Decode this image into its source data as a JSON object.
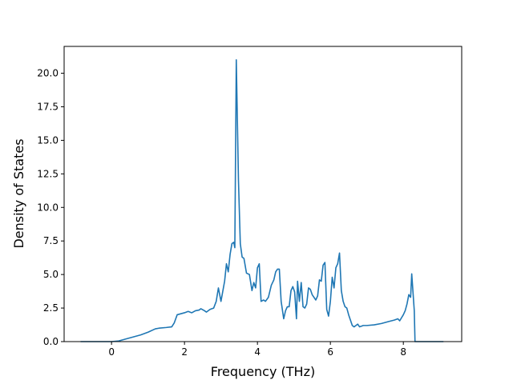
{
  "chart_data": {
    "type": "line",
    "title": "",
    "xlabel": "Frequency (THz)",
    "ylabel": "Density of States",
    "xlim": [
      -1.3,
      9.6
    ],
    "ylim": [
      0,
      22
    ],
    "xticks": [
      0,
      2,
      4,
      6,
      8
    ],
    "xtick_labels": [
      "0",
      "2",
      "4",
      "6",
      "8"
    ],
    "yticks": [
      0,
      2.5,
      5,
      7.5,
      10,
      12.5,
      15,
      17.5,
      20
    ],
    "ytick_labels": [
      "0.0",
      "2.5",
      "5.0",
      "7.5",
      "10.0",
      "12.5",
      "15.0",
      "17.5",
      "20.0"
    ],
    "grid": false,
    "legend": "none",
    "series_color": "#1f77b4",
    "series": [
      {
        "x": [
          -0.85,
          -0.4,
          0.0,
          0.2,
          0.4,
          0.6,
          0.8,
          1.0,
          1.2,
          1.3,
          1.5,
          1.65,
          1.72,
          1.8,
          2.0,
          2.1,
          2.2,
          2.3,
          2.4,
          2.45,
          2.55,
          2.6,
          2.7,
          2.75,
          2.8,
          2.87,
          2.93,
          3.0,
          3.1,
          3.15,
          3.2,
          3.25,
          3.3,
          3.35,
          3.38,
          3.42,
          3.48,
          3.53,
          3.58,
          3.63,
          3.7,
          3.78,
          3.85,
          3.9,
          3.95,
          4.0,
          4.05,
          4.1,
          4.17,
          4.22,
          4.3,
          4.38,
          4.45,
          4.5,
          4.55,
          4.6,
          4.65,
          4.72,
          4.77,
          4.82,
          4.87,
          4.92,
          4.97,
          5.02,
          5.07,
          5.1,
          5.15,
          5.2,
          5.25,
          5.3,
          5.35,
          5.4,
          5.45,
          5.5,
          5.6,
          5.65,
          5.7,
          5.75,
          5.8,
          5.85,
          5.9,
          5.95,
          6.0,
          6.05,
          6.1,
          6.15,
          6.2,
          6.25,
          6.3,
          6.35,
          6.4,
          6.45,
          6.5,
          6.6,
          6.65,
          6.7,
          6.75,
          6.8,
          6.85,
          6.9,
          7.0,
          7.2,
          7.4,
          7.6,
          7.75,
          7.85,
          7.9,
          8.0,
          8.05,
          8.1,
          8.15,
          8.2,
          8.23,
          8.3,
          8.32,
          8.6,
          9.1
        ],
        "values": [
          0.0,
          0.0,
          0.0,
          0.05,
          0.2,
          0.35,
          0.5,
          0.7,
          0.95,
          1.0,
          1.05,
          1.1,
          1.4,
          2.0,
          2.15,
          2.25,
          2.15,
          2.3,
          2.35,
          2.45,
          2.3,
          2.2,
          2.4,
          2.45,
          2.5,
          3.0,
          4.0,
          3.0,
          4.5,
          5.8,
          5.2,
          6.5,
          7.3,
          7.4,
          7.0,
          21.0,
          12.0,
          7.3,
          6.3,
          6.2,
          5.1,
          5.0,
          3.8,
          4.4,
          4.0,
          5.5,
          5.8,
          3.0,
          3.1,
          3.0,
          3.3,
          4.2,
          4.6,
          5.2,
          5.4,
          5.4,
          3.0,
          1.7,
          2.3,
          2.6,
          2.6,
          3.8,
          4.1,
          3.7,
          1.7,
          4.5,
          3.0,
          4.4,
          2.6,
          2.5,
          2.8,
          4.0,
          3.9,
          3.5,
          3.1,
          3.4,
          4.6,
          4.5,
          5.7,
          5.9,
          2.4,
          1.9,
          3.0,
          4.8,
          4.0,
          5.5,
          5.8,
          6.6,
          3.8,
          3.0,
          2.6,
          2.5,
          2.0,
          1.2,
          1.1,
          1.2,
          1.3,
          1.1,
          1.15,
          1.2,
          1.2,
          1.25,
          1.35,
          1.5,
          1.6,
          1.7,
          1.55,
          2.0,
          2.3,
          2.8,
          3.5,
          3.3,
          5.05,
          2.3,
          0.0,
          0.0,
          0.0
        ]
      }
    ]
  }
}
